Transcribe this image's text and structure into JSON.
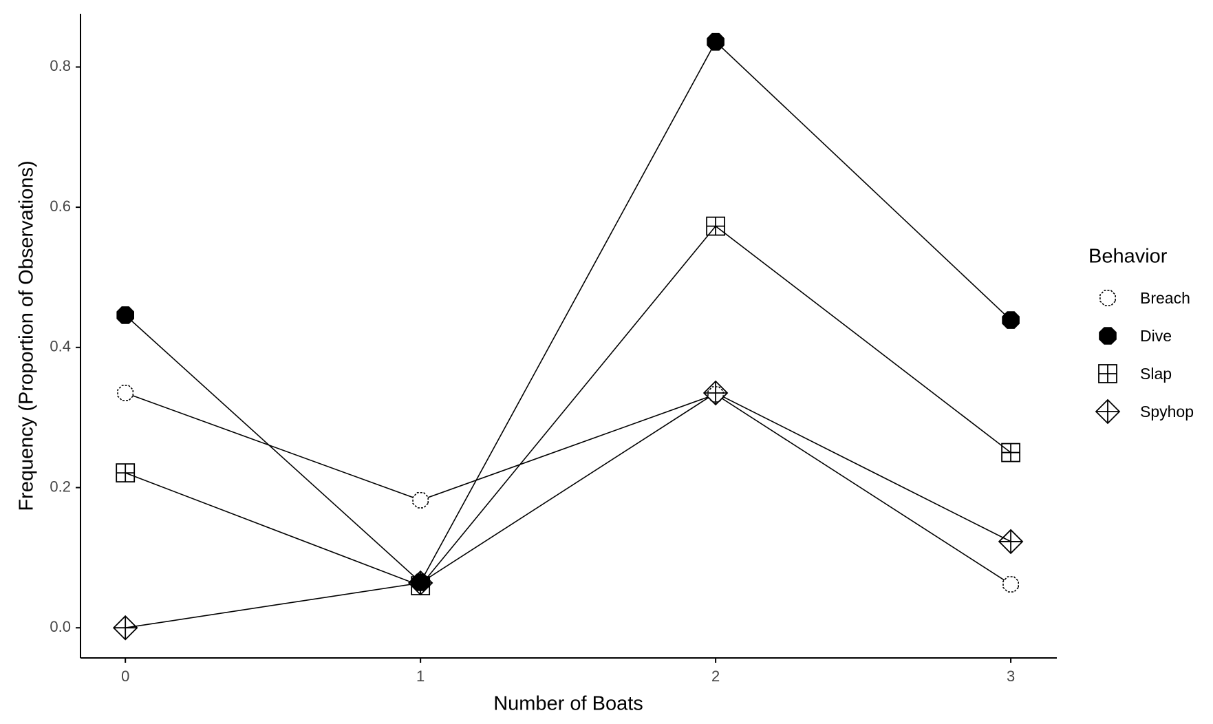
{
  "chart_data": {
    "type": "line",
    "x_label": "Number of Boats",
    "y_label": "Frequency (Proportion of Observations)",
    "legend_title": "Behavior",
    "legend": "right",
    "x": [
      0,
      1,
      2,
      3
    ],
    "series": [
      {
        "name": "Breach",
        "color": "#000000",
        "values": [
          0.335,
          0.182,
          0.333,
          0.062
        ]
      },
      {
        "name": "Dive",
        "color": "#000000",
        "values": [
          0.446,
          0.065,
          0.836,
          0.439
        ]
      },
      {
        "name": "Slap",
        "color": "#000000",
        "values": [
          0.221,
          0.06,
          0.573,
          0.25
        ]
      },
      {
        "name": "Spyhop",
        "color": "#000000",
        "values": [
          0,
          0.064,
          0.335,
          0.123
        ]
      }
    ],
    "xlim": [
      -0.152,
      3.156
    ],
    "xticks": [
      0,
      1,
      2,
      3
    ],
    "ylim": [
      -0.043,
      0.876
    ],
    "yticks": [
      {
        "value": 0,
        "label": "0.0"
      },
      0.2,
      0.4,
      0.6,
      0.8
    ],
    "grid": false
  }
}
